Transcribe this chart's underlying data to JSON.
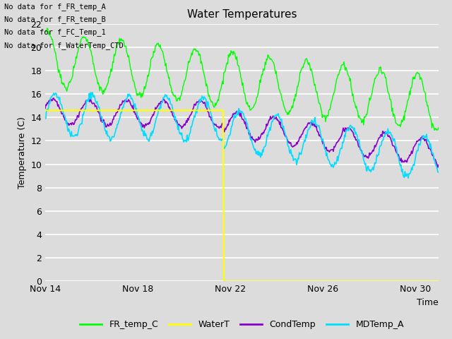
{
  "title": "Water Temperatures",
  "xlabel": "Time",
  "ylabel": "Temperature (C)",
  "ylim": [
    0,
    22
  ],
  "yticks": [
    0,
    2,
    4,
    6,
    8,
    10,
    12,
    14,
    16,
    18,
    20,
    22
  ],
  "bg_color": "#dcdcdc",
  "plot_bg_color": "#dcdcdc",
  "grid_color": "#ffffff",
  "text_annotations": [
    "No data for f_FR_temp_A",
    "No data for f_FR_temp_B",
    "No data for f_FC_Temp_1",
    "No data for f_WaterTemp_CTD"
  ],
  "legend_labels": [
    "FR_temp_C",
    "WaterT",
    "CondTemp",
    "MDTemp_A"
  ],
  "legend_colors": [
    "#00ff00",
    "#ffff00",
    "#8800cc",
    "#00ddff"
  ],
  "xtick_positions": [
    0,
    4,
    8,
    12,
    16
  ],
  "xtick_labels": [
    "Nov 14",
    "Nov 18",
    "Nov 22",
    "Nov 26",
    "Nov 30"
  ],
  "waterT_drop_day": 7.7,
  "waterT_level": 14.6
}
